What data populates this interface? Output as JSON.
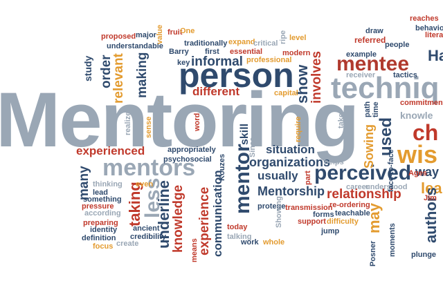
{
  "image": {
    "description_words": [
      {
        "text": "Mentoring",
        "color": "#9aa7b5"
      },
      {
        "text": "person",
        "color": "#2f4a6d"
      },
      {
        "text": "techniq",
        "color": "#9aa7b5"
      },
      {
        "text": "mentors",
        "color": "#9aa7b5"
      },
      {
        "text": "mentee",
        "color": "#b03a2e"
      },
      {
        "text": "perceived",
        "color": "#2f4a6d"
      },
      {
        "text": "experienced",
        "color": "#c0392b"
      },
      {
        "text": "organizations",
        "color": "#2f4a6d"
      },
      {
        "text": "relationship",
        "color": "#c0392b"
      },
      {
        "text": "Mentorship",
        "color": "#2f4a6d"
      },
      {
        "text": "situation",
        "color": "#2f4a6d"
      },
      {
        "text": "different",
        "color": "#c0392b"
      },
      {
        "text": "informal",
        "color": "#2f4a6d"
      },
      {
        "text": "usually",
        "color": "#2f4a6d"
      },
      {
        "text": "mentor",
        "color": "#2f4a6d"
      },
      {
        "text": "knowledge",
        "color": "#c0392b"
      },
      {
        "text": "experience",
        "color": "#c0392b"
      },
      {
        "text": "communication",
        "color": "#2f4a6d"
      },
      {
        "text": "underline",
        "color": "#2f4a6d"
      },
      {
        "text": "taking",
        "color": "#c0392b"
      },
      {
        "text": "less",
        "color": "#9aa7b5"
      },
      {
        "text": "wis",
        "color": "#e39b2f"
      },
      {
        "text": "ch",
        "color": "#c0392b"
      },
      {
        "text": "used",
        "color": "#2f4a6d"
      },
      {
        "text": "involves",
        "color": "#c0392b"
      },
      {
        "text": "show",
        "color": "#2f4a6d"
      },
      {
        "text": "making",
        "color": "#2f4a6d"
      },
      {
        "text": "relevant",
        "color": "#e39b2f"
      },
      {
        "text": "order",
        "color": "#2f4a6d"
      },
      {
        "text": "study",
        "color": "#2f4a6d"
      },
      {
        "text": "skill",
        "color": "#2f4a6d"
      },
      {
        "text": "Sowing",
        "color": "#e39b2f"
      },
      {
        "text": "may",
        "color": "#e39b2f"
      },
      {
        "text": "authors",
        "color": "#2f4a6d"
      },
      {
        "text": "lea",
        "color": "#e39b2f"
      },
      {
        "text": "way",
        "color": "#2f4a6d"
      },
      {
        "text": "knowle",
        "color": "#9aa7b5"
      },
      {
        "text": "Ha",
        "color": "#2f4a6d"
      },
      {
        "text": "many",
        "color": "#2f4a6d"
      },
      {
        "text": "proposed",
        "color": "#c0392b"
      },
      {
        "text": "major",
        "color": "#2f4a6d"
      },
      {
        "text": "value",
        "color": "#e39b2f"
      },
      {
        "text": "fruit",
        "color": "#c0392b"
      },
      {
        "text": "One",
        "color": "#e39b2f"
      },
      {
        "text": "traditionally",
        "color": "#2f4a6d"
      },
      {
        "text": "expand",
        "color": "#e39b2f"
      },
      {
        "text": "critical",
        "color": "#9aa7b5"
      },
      {
        "text": "ripe",
        "color": "#9aa7b5"
      },
      {
        "text": "level",
        "color": "#e39b2f"
      },
      {
        "text": "draw",
        "color": "#2f4a6d"
      },
      {
        "text": "referred",
        "color": "#c0392b"
      },
      {
        "text": "people",
        "color": "#2f4a6d"
      },
      {
        "text": "reaches",
        "color": "#c0392b"
      },
      {
        "text": "behavio",
        "color": "#2f4a6d"
      },
      {
        "text": "litera",
        "color": "#c0392b"
      },
      {
        "text": "understandable",
        "color": "#2f4a6d"
      },
      {
        "text": "Barry",
        "color": "#2f4a6d"
      },
      {
        "text": "first",
        "color": "#2f4a6d"
      },
      {
        "text": "essential",
        "color": "#c0392b"
      },
      {
        "text": "modern",
        "color": "#c0392b"
      },
      {
        "text": "example",
        "color": "#2f4a6d"
      },
      {
        "text": "professional",
        "color": "#e39b2f"
      },
      {
        "text": "key",
        "color": "#2f4a6d"
      },
      {
        "text": "receiver",
        "color": "#9aa7b5"
      },
      {
        "text": "tactics",
        "color": "#2f4a6d"
      },
      {
        "text": "commitment",
        "color": "#c0392b"
      },
      {
        "text": "capital",
        "color": "#e39b2f"
      },
      {
        "text": "appropriately",
        "color": "#2f4a6d"
      },
      {
        "text": "psychosocial",
        "color": "#2f4a6d"
      },
      {
        "text": "thinking",
        "color": "#9aa7b5"
      },
      {
        "text": "lead",
        "color": "#2f4a6d"
      },
      {
        "text": "something",
        "color": "#2f4a6d"
      },
      {
        "text": "pressure",
        "color": "#c0392b"
      },
      {
        "text": "according",
        "color": "#9aa7b5"
      },
      {
        "text": "preparing",
        "color": "#c0392b"
      },
      {
        "text": "identity",
        "color": "#2f4a6d"
      },
      {
        "text": "definition",
        "color": "#2f4a6d"
      },
      {
        "text": "focus",
        "color": "#e39b2f"
      },
      {
        "text": "create",
        "color": "#9aa7b5"
      },
      {
        "text": "ancient",
        "color": "#2f4a6d"
      },
      {
        "text": "credibility",
        "color": "#2f4a6d"
      },
      {
        "text": "even",
        "color": "#e39b2f"
      },
      {
        "text": "means",
        "color": "#c0392b"
      },
      {
        "text": "today",
        "color": "#c0392b"
      },
      {
        "text": "talking",
        "color": "#9aa7b5"
      },
      {
        "text": "work",
        "color": "#2f4a6d"
      },
      {
        "text": "whole",
        "color": "#e39b2f"
      },
      {
        "text": "protege",
        "color": "#2f4a6d"
      },
      {
        "text": "transmission",
        "color": "#c0392b"
      },
      {
        "text": "forms",
        "color": "#2f4a6d"
      },
      {
        "text": "support",
        "color": "#c0392b"
      },
      {
        "text": "teachable",
        "color": "#2f4a6d"
      },
      {
        "text": "difficulty",
        "color": "#e39b2f"
      },
      {
        "text": "re-ordering",
        "color": "#c0392b"
      },
      {
        "text": "career",
        "color": "#9aa7b5"
      },
      {
        "text": "understood",
        "color": "#9aa7b5"
      },
      {
        "text": "helps",
        "color": "#9aa7b5"
      },
      {
        "text": "jump",
        "color": "#2f4a6d"
      },
      {
        "text": "moments",
        "color": "#2f4a6d"
      },
      {
        "text": "plunge",
        "color": "#2f4a6d"
      },
      {
        "text": "Jim",
        "color": "#c0392b"
      },
      {
        "text": "Ages",
        "color": "#c0392b"
      },
      {
        "text": "Posner",
        "color": "#2f4a6d"
      },
      {
        "text": "face-to-face",
        "color": "#2f4a6d"
      },
      {
        "text": "Showing",
        "color": "#9aa7b5"
      },
      {
        "text": "Kouzes",
        "color": "#2f4a6d"
      },
      {
        "text": "word",
        "color": "#c0392b"
      },
      {
        "text": "sense",
        "color": "#e39b2f"
      },
      {
        "text": "realize",
        "color": "#9aa7b5"
      },
      {
        "text": "require",
        "color": "#e39b2f"
      },
      {
        "text": "part",
        "color": "#c0392b"
      },
      {
        "text": "take",
        "color": "#9aa7b5"
      },
      {
        "text": "path",
        "color": "#2f4a6d"
      },
      {
        "text": "time",
        "color": "#2f4a6d"
      },
      {
        "text": "Since",
        "color": "#9aa7b5"
      }
    ]
  }
}
